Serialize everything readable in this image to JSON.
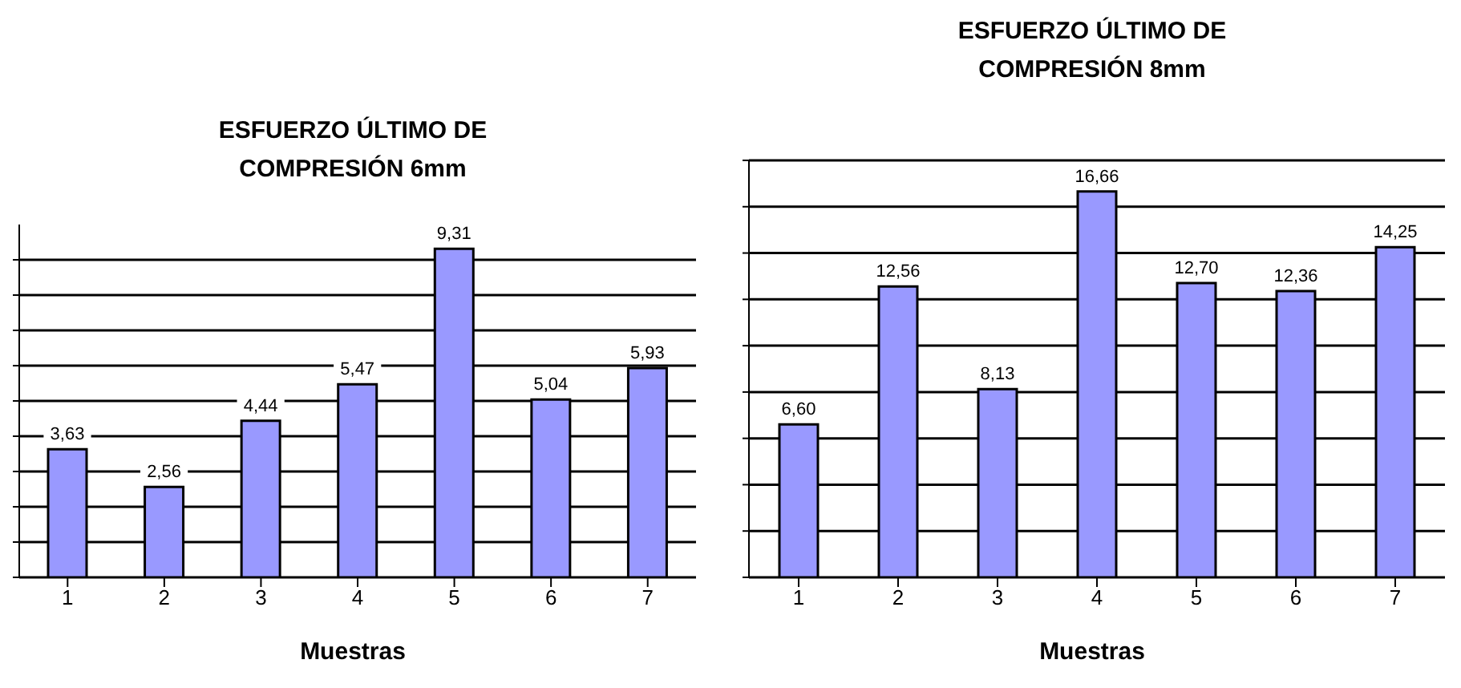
{
  "chart_data": [
    {
      "type": "bar",
      "title": "ESFUERZO ÚLTIMO DE COMPRESIÓN 6mm",
      "xlabel": "Muestras",
      "categories": [
        "1",
        "2",
        "3",
        "4",
        "5",
        "6",
        "7"
      ],
      "values": [
        3.63,
        2.56,
        4.44,
        5.47,
        9.31,
        5.04,
        5.93
      ],
      "value_labels": [
        "3,63",
        "2,56",
        "4,44",
        "5,47",
        "9,31",
        "5,04",
        "5,93"
      ],
      "color": "#9999ff",
      "ylim": [
        0,
        10
      ],
      "yticks": [
        {
          "value": 0,
          "label": null
        },
        {
          "value": 1,
          "label": null
        },
        {
          "value": 2,
          "label": null
        },
        {
          "value": 3,
          "label": null
        },
        {
          "value": 4,
          "label": null
        },
        {
          "value": 5,
          "label": null
        },
        {
          "value": 6,
          "label": null
        },
        {
          "value": 7,
          "label": null
        },
        {
          "value": 8,
          "label": null
        },
        {
          "value": 9,
          "label": null
        }
      ],
      "grid": "y",
      "tick_labels": "x"
    },
    {
      "type": "bar",
      "title": "ESFUERZO ÚLTIMO DE COMPRESIÓN 8mm",
      "xlabel": "Muestras",
      "categories": [
        "1",
        "2",
        "3",
        "4",
        "5",
        "6",
        "7"
      ],
      "values": [
        6.6,
        12.56,
        8.13,
        16.66,
        12.7,
        12.36,
        14.25
      ],
      "value_labels": [
        "6,60",
        "12,56",
        "8,13",
        "16,66",
        "12,70",
        "12,36",
        "14,25"
      ],
      "color": "#9999ff",
      "ylim": [
        0,
        18
      ],
      "yticks": [
        {
          "value": 0,
          "label": null
        },
        {
          "value": 2,
          "label": null
        },
        {
          "value": 4,
          "label": null
        },
        {
          "value": 6,
          "label": null
        },
        {
          "value": 8,
          "label": null
        },
        {
          "value": 10,
          "label": null
        },
        {
          "value": 12,
          "label": null
        },
        {
          "value": 14,
          "label": null
        },
        {
          "value": 16,
          "label": null
        },
        {
          "value": 18,
          "label": null
        }
      ],
      "grid": "y",
      "tick_labels": "x"
    }
  ]
}
